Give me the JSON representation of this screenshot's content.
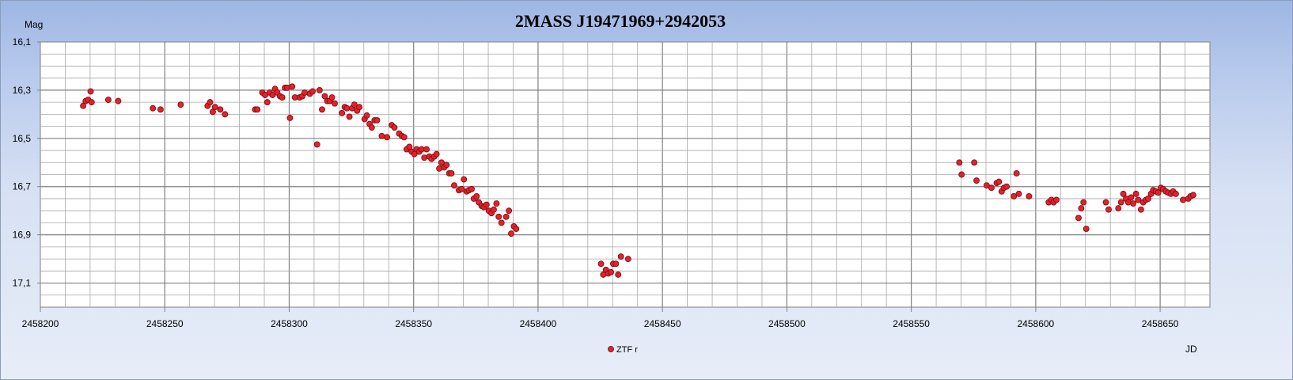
{
  "chart_data": {
    "type": "scatter",
    "title": "2MASS J19471969+2942053",
    "xlabel": "JD",
    "ylabel": "Mag",
    "xlim": [
      2458200,
      2458670
    ],
    "ylim": [
      16.1,
      17.2
    ],
    "y_inverted": true,
    "x_ticks": [
      2458200,
      2458250,
      2458300,
      2458350,
      2458400,
      2458450,
      2458500,
      2458550,
      2458600,
      2458650
    ],
    "x_tick_labels": [
      "2458200",
      "2458250",
      "2458300",
      "2458350",
      "2458400",
      "2458450",
      "2458500",
      "2458550",
      "2458600",
      "2458650"
    ],
    "y_ticks": [
      16.1,
      16.3,
      16.5,
      16.7,
      16.9,
      17.1
    ],
    "y_tick_labels": [
      "16,1",
      "16,3",
      "16,5",
      "16,7",
      "16,9",
      "17,1"
    ],
    "grid": true,
    "legend_position": "bottom-center",
    "colors": {
      "marker": "#e8202a",
      "marker_edge": "#7a1016",
      "grid": "#a8a8a8",
      "plot_bg": "#ffffff"
    },
    "series": [
      {
        "name": "ZTF r",
        "points": [
          [
            2458217.2,
            16.365
          ],
          [
            2458218.2,
            16.345
          ],
          [
            2458219.2,
            16.34
          ],
          [
            2458220.2,
            16.305
          ],
          [
            2458220.6,
            16.35
          ],
          [
            2458227.3,
            16.34
          ],
          [
            2458231.3,
            16.345
          ],
          [
            2458245.2,
            16.375
          ],
          [
            2458248.3,
            16.38
          ],
          [
            2458256.4,
            16.36
          ],
          [
            2458267.2,
            16.365
          ],
          [
            2458268.2,
            16.35
          ],
          [
            2458269.3,
            16.39
          ],
          [
            2458270.2,
            16.37
          ],
          [
            2458272.3,
            16.38
          ],
          [
            2458274.2,
            16.4
          ],
          [
            2458286.3,
            16.38
          ],
          [
            2458287.2,
            16.38
          ],
          [
            2458289.2,
            16.31
          ],
          [
            2458290.3,
            16.32
          ],
          [
            2458291.2,
            16.35
          ],
          [
            2458292.2,
            16.31
          ],
          [
            2458293.3,
            16.32
          ],
          [
            2458294.3,
            16.295
          ],
          [
            2458295.2,
            16.31
          ],
          [
            2458296.3,
            16.325
          ],
          [
            2458297.2,
            16.33
          ],
          [
            2458298.3,
            16.29
          ],
          [
            2458299.2,
            16.29
          ],
          [
            2458300.3,
            16.415
          ],
          [
            2458301.2,
            16.285
          ],
          [
            2458302.3,
            16.33
          ],
          [
            2458304.2,
            16.33
          ],
          [
            2458305.3,
            16.325
          ],
          [
            2458306.2,
            16.31
          ],
          [
            2458308.3,
            16.315
          ],
          [
            2458309.4,
            16.305
          ],
          [
            2458311.2,
            16.525
          ],
          [
            2458312.2,
            16.3
          ],
          [
            2458313.2,
            16.38
          ],
          [
            2458314.3,
            16.325
          ],
          [
            2458315.3,
            16.345
          ],
          [
            2458316.3,
            16.345
          ],
          [
            2458317.2,
            16.33
          ],
          [
            2458318.3,
            16.355
          ],
          [
            2458321.2,
            16.395
          ],
          [
            2458322.3,
            16.37
          ],
          [
            2458323.2,
            16.375
          ],
          [
            2458324.2,
            16.41
          ],
          [
            2458325.3,
            16.375
          ],
          [
            2458326.2,
            16.36
          ],
          [
            2458327.3,
            16.385
          ],
          [
            2458328.2,
            16.37
          ],
          [
            2458330.3,
            16.42
          ],
          [
            2458331.2,
            16.405
          ],
          [
            2458332.3,
            16.44
          ],
          [
            2458333.2,
            16.455
          ],
          [
            2458334.3,
            16.425
          ],
          [
            2458335.3,
            16.425
          ],
          [
            2458337.2,
            16.49
          ],
          [
            2458339.3,
            16.495
          ],
          [
            2458341.2,
            16.445
          ],
          [
            2458342.3,
            16.455
          ],
          [
            2458344.2,
            16.48
          ],
          [
            2458345.3,
            16.49
          ],
          [
            2458346.2,
            16.495
          ],
          [
            2458347.2,
            16.545
          ],
          [
            2458348.3,
            16.535
          ],
          [
            2458349.2,
            16.555
          ],
          [
            2458350.3,
            16.565
          ],
          [
            2458351.2,
            16.545
          ],
          [
            2458352.3,
            16.555
          ],
          [
            2458353.2,
            16.545
          ],
          [
            2458354.3,
            16.58
          ],
          [
            2458355.2,
            16.545
          ],
          [
            2458356.3,
            16.575
          ],
          [
            2458357.2,
            16.585
          ],
          [
            2458358.3,
            16.575
          ],
          [
            2458359.2,
            16.565
          ],
          [
            2458360.3,
            16.625
          ],
          [
            2458361.2,
            16.6
          ],
          [
            2458362.3,
            16.62
          ],
          [
            2458363.2,
            16.61
          ],
          [
            2458364.3,
            16.645
          ],
          [
            2458365.2,
            16.645
          ],
          [
            2458366.3,
            16.695
          ],
          [
            2458368.2,
            16.715
          ],
          [
            2458369.3,
            16.71
          ],
          [
            2458370.2,
            16.67
          ],
          [
            2458371.3,
            16.72
          ],
          [
            2458372.2,
            16.715
          ],
          [
            2458373.3,
            16.71
          ],
          [
            2458374.2,
            16.75
          ],
          [
            2458375.3,
            16.74
          ],
          [
            2458376.2,
            16.765
          ],
          [
            2458377.3,
            16.78
          ],
          [
            2458378.2,
            16.785
          ],
          [
            2458379.3,
            16.775
          ],
          [
            2458380.2,
            16.8
          ],
          [
            2458381.3,
            16.81
          ],
          [
            2458382.2,
            16.795
          ],
          [
            2458383.3,
            16.77
          ],
          [
            2458384.2,
            16.825
          ],
          [
            2458385.3,
            16.85
          ],
          [
            2458387.2,
            16.825
          ],
          [
            2458388.3,
            16.8
          ],
          [
            2458389.2,
            16.895
          ],
          [
            2458390.3,
            16.865
          ],
          [
            2458391.2,
            16.875
          ],
          [
            2458425.3,
            17.02
          ],
          [
            2458426.2,
            17.065
          ],
          [
            2458427.3,
            17.045
          ],
          [
            2458428.2,
            17.06
          ],
          [
            2458429.3,
            17.055
          ],
          [
            2458430.2,
            17.02
          ],
          [
            2458431.3,
            17.02
          ],
          [
            2458432.2,
            17.065
          ],
          [
            2458433.3,
            16.99
          ],
          [
            2458436.2,
            17.0
          ],
          [
            2458569.3,
            16.6
          ],
          [
            2458570.2,
            16.65
          ],
          [
            2458575.3,
            16.6
          ],
          [
            2458576.2,
            16.675
          ],
          [
            2458580.3,
            16.695
          ],
          [
            2458582.2,
            16.705
          ],
          [
            2458584.3,
            16.685
          ],
          [
            2458585.2,
            16.68
          ],
          [
            2458586.3,
            16.72
          ],
          [
            2458587.2,
            16.705
          ],
          [
            2458588.3,
            16.7
          ],
          [
            2458591.2,
            16.74
          ],
          [
            2458592.3,
            16.645
          ],
          [
            2458593.2,
            16.73
          ],
          [
            2458597.3,
            16.74
          ],
          [
            2458605.2,
            16.765
          ],
          [
            2458606.3,
            16.755
          ],
          [
            2458607.2,
            16.765
          ],
          [
            2458608.3,
            16.755
          ],
          [
            2458617.2,
            16.83
          ],
          [
            2458618.3,
            16.79
          ],
          [
            2458619.2,
            16.765
          ],
          [
            2458620.3,
            16.875
          ],
          [
            2458628.2,
            16.765
          ],
          [
            2458629.3,
            16.795
          ],
          [
            2458633.2,
            16.79
          ],
          [
            2458634.3,
            16.765
          ],
          [
            2458635.2,
            16.73
          ],
          [
            2458636.3,
            16.75
          ],
          [
            2458637.2,
            16.765
          ],
          [
            2458638.3,
            16.745
          ],
          [
            2458639.2,
            16.77
          ],
          [
            2458640.3,
            16.73
          ],
          [
            2458641.2,
            16.755
          ],
          [
            2458642.3,
            16.795
          ],
          [
            2458643.2,
            16.765
          ],
          [
            2458644.3,
            16.755
          ],
          [
            2458645.2,
            16.75
          ],
          [
            2458646.3,
            16.73
          ],
          [
            2458647.2,
            16.715
          ],
          [
            2458648.3,
            16.72
          ],
          [
            2458649.2,
            16.725
          ],
          [
            2458650.3,
            16.705
          ],
          [
            2458651.2,
            16.71
          ],
          [
            2458652.3,
            16.72
          ],
          [
            2458653.2,
            16.725
          ],
          [
            2458654.3,
            16.73
          ],
          [
            2458655.2,
            16.72
          ],
          [
            2458656.3,
            16.73
          ],
          [
            2458659.2,
            16.755
          ],
          [
            2458661.3,
            16.75
          ],
          [
            2458662.2,
            16.74
          ],
          [
            2458663.3,
            16.735
          ]
        ]
      }
    ]
  }
}
